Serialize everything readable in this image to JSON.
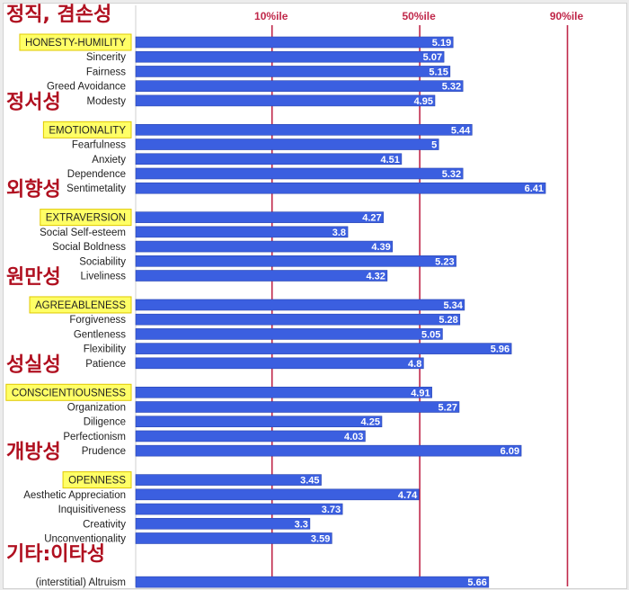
{
  "chart_data": {
    "type": "bar",
    "orientation": "horizontal",
    "xlim": [
      1,
      7
    ],
    "bar_color": "#3b5fe0",
    "highlight_color": "#ffff66",
    "percentile_color": "#c0284a",
    "korean_color": "#b01020",
    "percentile_lines": [
      {
        "label": "10%ile",
        "value": 2.8
      },
      {
        "label": "50%ile",
        "value": 4.75
      },
      {
        "label": "90%ile",
        "value": 6.7
      }
    ],
    "groups": [
      {
        "korean": "정직, 겸손성",
        "items": [
          {
            "label": "HONESTY-HUMILITY",
            "value": 5.19,
            "highlight": true
          },
          {
            "label": "Sincerity",
            "value": 5.07
          },
          {
            "label": "Fairness",
            "value": 5.15
          },
          {
            "label": "Greed Avoidance",
            "value": 5.32
          },
          {
            "label": "Modesty",
            "value": 4.95
          }
        ]
      },
      {
        "korean": "정서성",
        "items": [
          {
            "label": "EMOTIONALITY",
            "value": 5.44,
            "highlight": true
          },
          {
            "label": "Fearfulness",
            "value": 5
          },
          {
            "label": "Anxiety",
            "value": 4.51
          },
          {
            "label": "Dependence",
            "value": 5.32
          },
          {
            "label": "Sentimetality",
            "value": 6.41
          }
        ]
      },
      {
        "korean": "외향성",
        "items": [
          {
            "label": "EXTRAVERSION",
            "value": 4.27,
            "highlight": true
          },
          {
            "label": "Social Self-esteem",
            "value": 3.8
          },
          {
            "label": "Social Boldness",
            "value": 4.39
          },
          {
            "label": "Sociability",
            "value": 5.23
          },
          {
            "label": "Liveliness",
            "value": 4.32
          }
        ]
      },
      {
        "korean": "원만성",
        "items": [
          {
            "label": "AGREEABLENESS",
            "value": 5.34,
            "highlight": true
          },
          {
            "label": "Forgiveness",
            "value": 5.28
          },
          {
            "label": "Gentleness",
            "value": 5.05
          },
          {
            "label": "Flexibility",
            "value": 5.96
          },
          {
            "label": "Patience",
            "value": 4.8
          }
        ]
      },
      {
        "korean": "성실성",
        "items": [
          {
            "label": "CONSCIENTIOUSNESS",
            "value": 4.91,
            "highlight": true
          },
          {
            "label": "Organization",
            "value": 5.27
          },
          {
            "label": "Diligence",
            "value": 4.25
          },
          {
            "label": "Perfectionism",
            "value": 4.03
          },
          {
            "label": "Prudence",
            "value": 6.09
          }
        ]
      },
      {
        "korean": "개방성",
        "items": [
          {
            "label": "OPENNESS",
            "value": 3.45,
            "highlight": true
          },
          {
            "label": "Aesthetic Appreciation",
            "value": 4.74
          },
          {
            "label": "Inquisitiveness",
            "value": 3.73
          },
          {
            "label": "Creativity",
            "value": 3.3
          },
          {
            "label": "Unconventionality",
            "value": 3.59
          }
        ]
      },
      {
        "korean": "기타:이타성",
        "items": [
          {
            "label": "(interstitial) Altruism",
            "value": 5.66
          }
        ]
      }
    ]
  }
}
